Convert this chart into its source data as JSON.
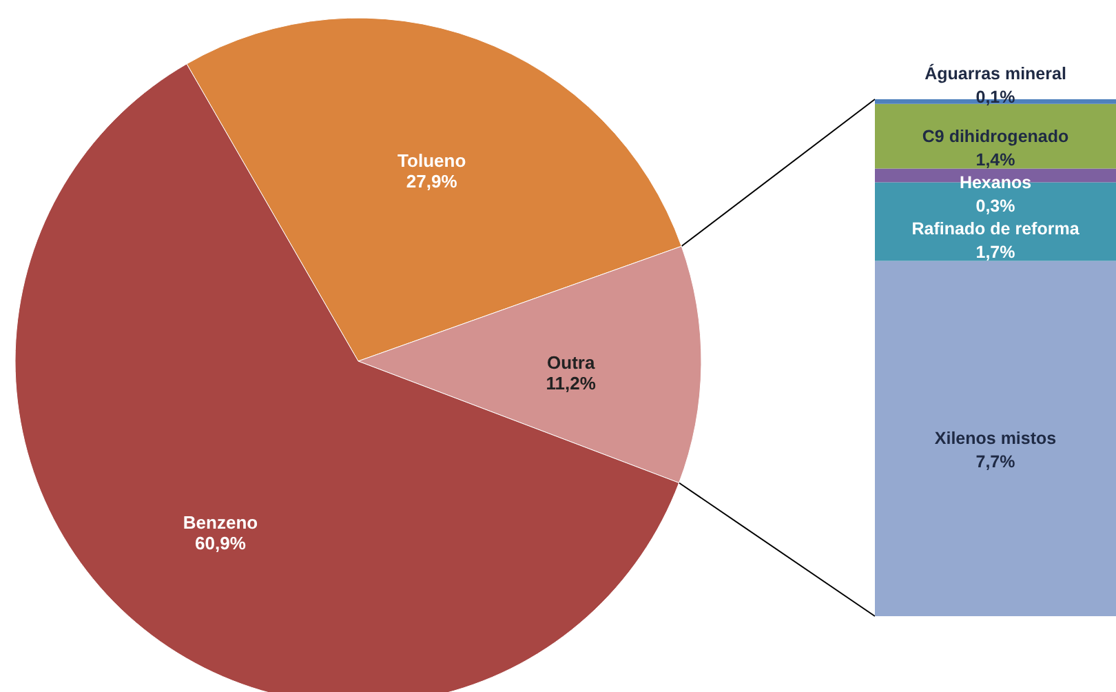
{
  "chart_data": [
    {
      "type": "pie",
      "categories": [
        "Tolueno",
        "Outra",
        "Benzeno"
      ],
      "values": [
        27.9,
        11.2,
        60.9
      ],
      "colors": [
        "#db843d",
        "#d39290",
        "#a84643"
      ],
      "value_labels": [
        "27,9%",
        "11,2%",
        "60,9%"
      ]
    },
    {
      "type": "bar",
      "stacked": true,
      "categories": [
        null
      ],
      "series": [
        {
          "name": "Xilenos mistos",
          "color": "#95a9d0",
          "values": [
            7.7
          ],
          "value_labels": [
            "7,7%"
          ]
        },
        {
          "name": "Rafinado de reforma",
          "color": "#4198af",
          "values": [
            1.7
          ],
          "value_labels": [
            "1,7%"
          ]
        },
        {
          "name": "Hexanos",
          "color": "#7d60a0",
          "values": [
            0.3
          ],
          "value_labels": [
            "0,3%"
          ]
        },
        {
          "name": "C9 dihidrogenado",
          "color": "#8fab4f",
          "values": [
            1.4
          ],
          "value_labels": [
            "1,4%"
          ]
        },
        {
          "name": "Águarras mineral",
          "color": "#4f81bd",
          "values": [
            0.1
          ],
          "value_labels": [
            "0,1%"
          ]
        }
      ]
    }
  ]
}
